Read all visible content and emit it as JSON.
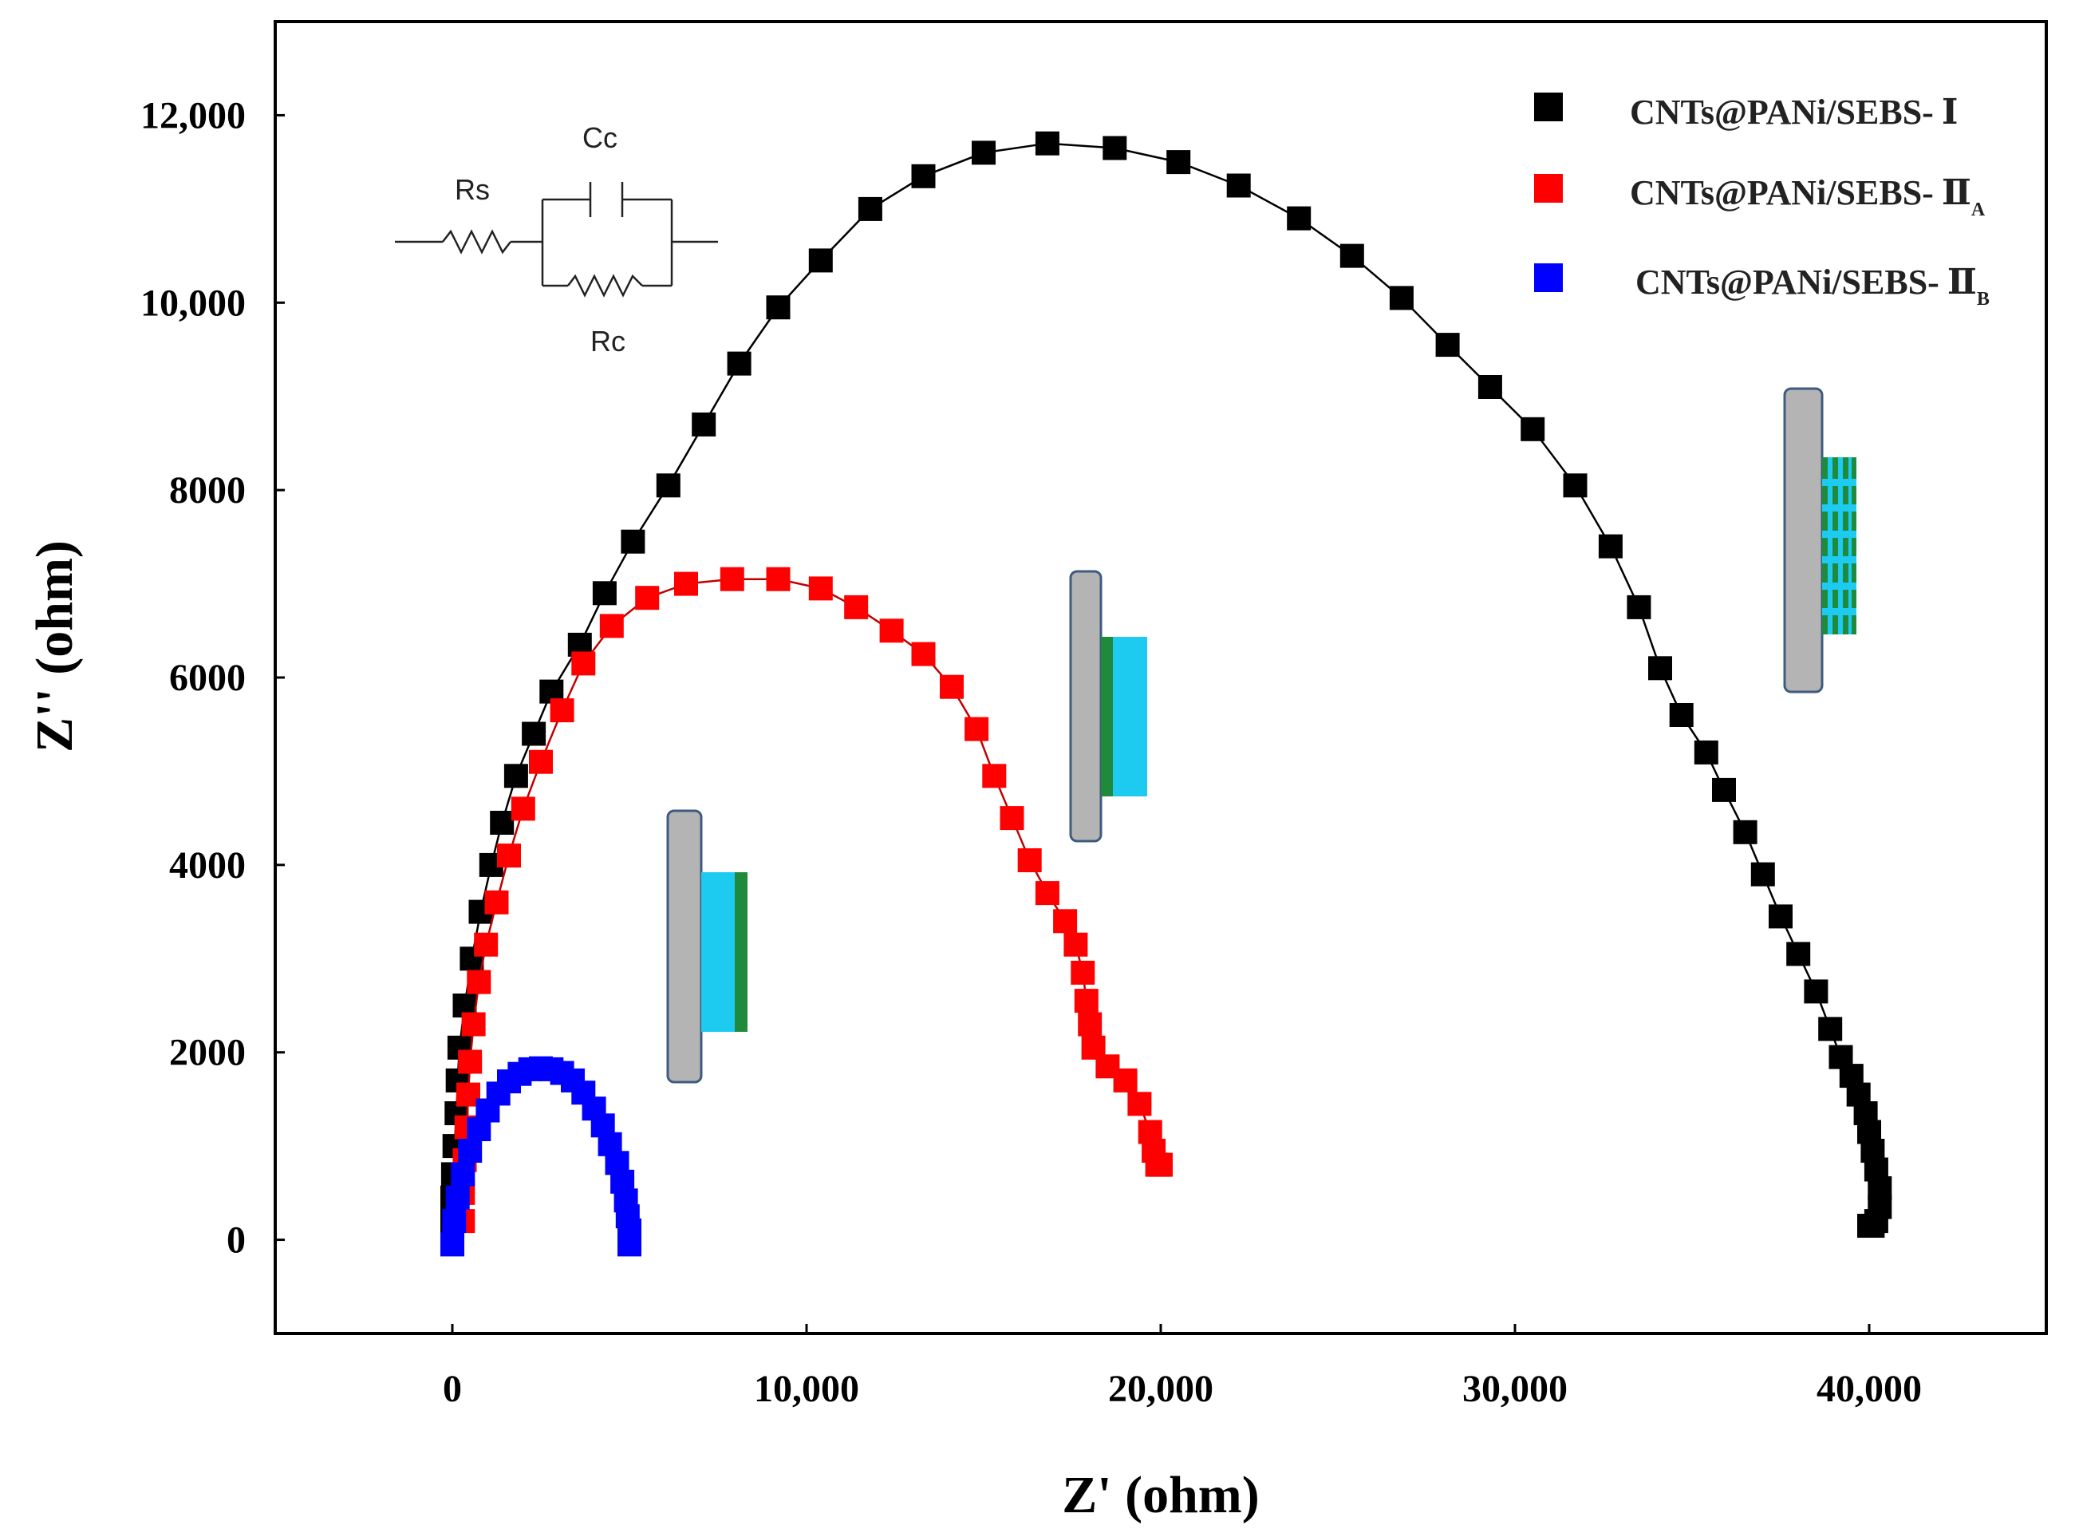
{
  "chart_data": {
    "type": "scatter",
    "title": "",
    "xlabel": "Z' (ohm)",
    "ylabel": "Z'' (ohm)",
    "xlim": [
      -5000,
      45000
    ],
    "ylim": [
      -1000,
      13000
    ],
    "x_ticks": [
      {
        "value": 0,
        "label": "0"
      },
      {
        "value": 10000,
        "label": "10,000"
      },
      {
        "value": 20000,
        "label": "20,000"
      },
      {
        "value": 30000,
        "label": "30,000"
      },
      {
        "value": 40000,
        "label": "40,000"
      }
    ],
    "y_ticks": [
      {
        "value": 0,
        "label": "0"
      },
      {
        "value": 2000,
        "label": "2000"
      },
      {
        "value": 4000,
        "label": "4000"
      },
      {
        "value": 6000,
        "label": "6000"
      },
      {
        "value": 8000,
        "label": "8000"
      },
      {
        "value": 10000,
        "label": "10,000"
      },
      {
        "value": 12000,
        "label": "12,000"
      }
    ],
    "grid": false,
    "legend_position": "top-right",
    "series": [
      {
        "name": "CNTs@PANi/SEBS-",
        "roman": "Ⅰ",
        "subscript": "",
        "color": "#000000",
        "marker": "square",
        "fit_line": true,
        "x": [
          0,
          0,
          20,
          60,
          120,
          150,
          200,
          350,
          550,
          800,
          1100,
          1400,
          1800,
          2300,
          2800,
          3600,
          4300,
          5100,
          6100,
          7100,
          8100,
          9200,
          10400,
          11800,
          13300,
          15000,
          16800,
          18700,
          20500,
          22200,
          23900,
          25400,
          26800,
          28100,
          29300,
          30500,
          31700,
          32700,
          33500,
          34100,
          34700,
          35400,
          35900,
          36500,
          37000,
          37500,
          38000,
          38500,
          38900,
          39200,
          39500,
          39700,
          39900,
          40000,
          40100,
          40200,
          40300,
          40300,
          40200,
          40100,
          40000
        ],
        "y": [
          200,
          450,
          700,
          1000,
          1350,
          1700,
          2050,
          2500,
          3000,
          3500,
          4000,
          4450,
          4950,
          5400,
          5850,
          6350,
          6900,
          7450,
          8050,
          8700,
          9350,
          9950,
          10450,
          11000,
          11350,
          11600,
          11700,
          11650,
          11500,
          11250,
          10900,
          10500,
          10050,
          9550,
          9100,
          8650,
          8050,
          7400,
          6750,
          6100,
          5600,
          5200,
          4800,
          4350,
          3900,
          3450,
          3050,
          2650,
          2250,
          1950,
          1750,
          1550,
          1350,
          1150,
          950,
          750,
          550,
          350,
          200,
          150,
          150
        ]
      },
      {
        "name": "CNTs@PANi/SEBS-",
        "roman": "Ⅱ",
        "subscript": "A",
        "color": "#ff0000",
        "marker": "square",
        "fit_line": true,
        "x": [
          300,
          300,
          350,
          400,
          450,
          500,
          600,
          750,
          950,
          1250,
          1600,
          2000,
          2500,
          3100,
          3700,
          4500,
          5500,
          6600,
          7900,
          9200,
          10400,
          11400,
          12400,
          13300,
          14100,
          14800,
          15300,
          15800,
          16300,
          16800,
          17300,
          17600,
          17800,
          17900,
          18000,
          18100,
          18500,
          19000,
          19400,
          19700,
          19800,
          19900,
          20000
        ],
        "y": [
          200,
          500,
          850,
          1200,
          1550,
          1900,
          2300,
          2750,
          3150,
          3600,
          4100,
          4600,
          5100,
          5650,
          6150,
          6550,
          6850,
          7000,
          7050,
          7050,
          6950,
          6750,
          6500,
          6250,
          5900,
          5450,
          4950,
          4500,
          4050,
          3700,
          3400,
          3150,
          2850,
          2550,
          2300,
          2050,
          1850,
          1700,
          1450,
          1150,
          950,
          800,
          800
        ]
      },
      {
        "name": "CNTs@PANi/SEBS-",
        "roman": "Ⅱ",
        "subscript": "B",
        "color": "#0000ff",
        "marker": "square",
        "fit_line": true,
        "x": [
          0,
          50,
          150,
          300,
          500,
          750,
          1000,
          1300,
          1600,
          1900,
          2200,
          2500,
          2800,
          3100,
          3400,
          3700,
          4000,
          4250,
          4450,
          4650,
          4800,
          4900,
          4950,
          5000,
          5000,
          5000
        ],
        "y": [
          -50,
          200,
          450,
          700,
          950,
          1180,
          1380,
          1560,
          1690,
          1770,
          1820,
          1830,
          1820,
          1780,
          1700,
          1570,
          1400,
          1220,
          1020,
          820,
          620,
          420,
          250,
          100,
          0,
          -50
        ]
      }
    ],
    "annotations": {
      "circuit_labels": [
        "Rs",
        "Cc",
        "Rc"
      ]
    }
  }
}
